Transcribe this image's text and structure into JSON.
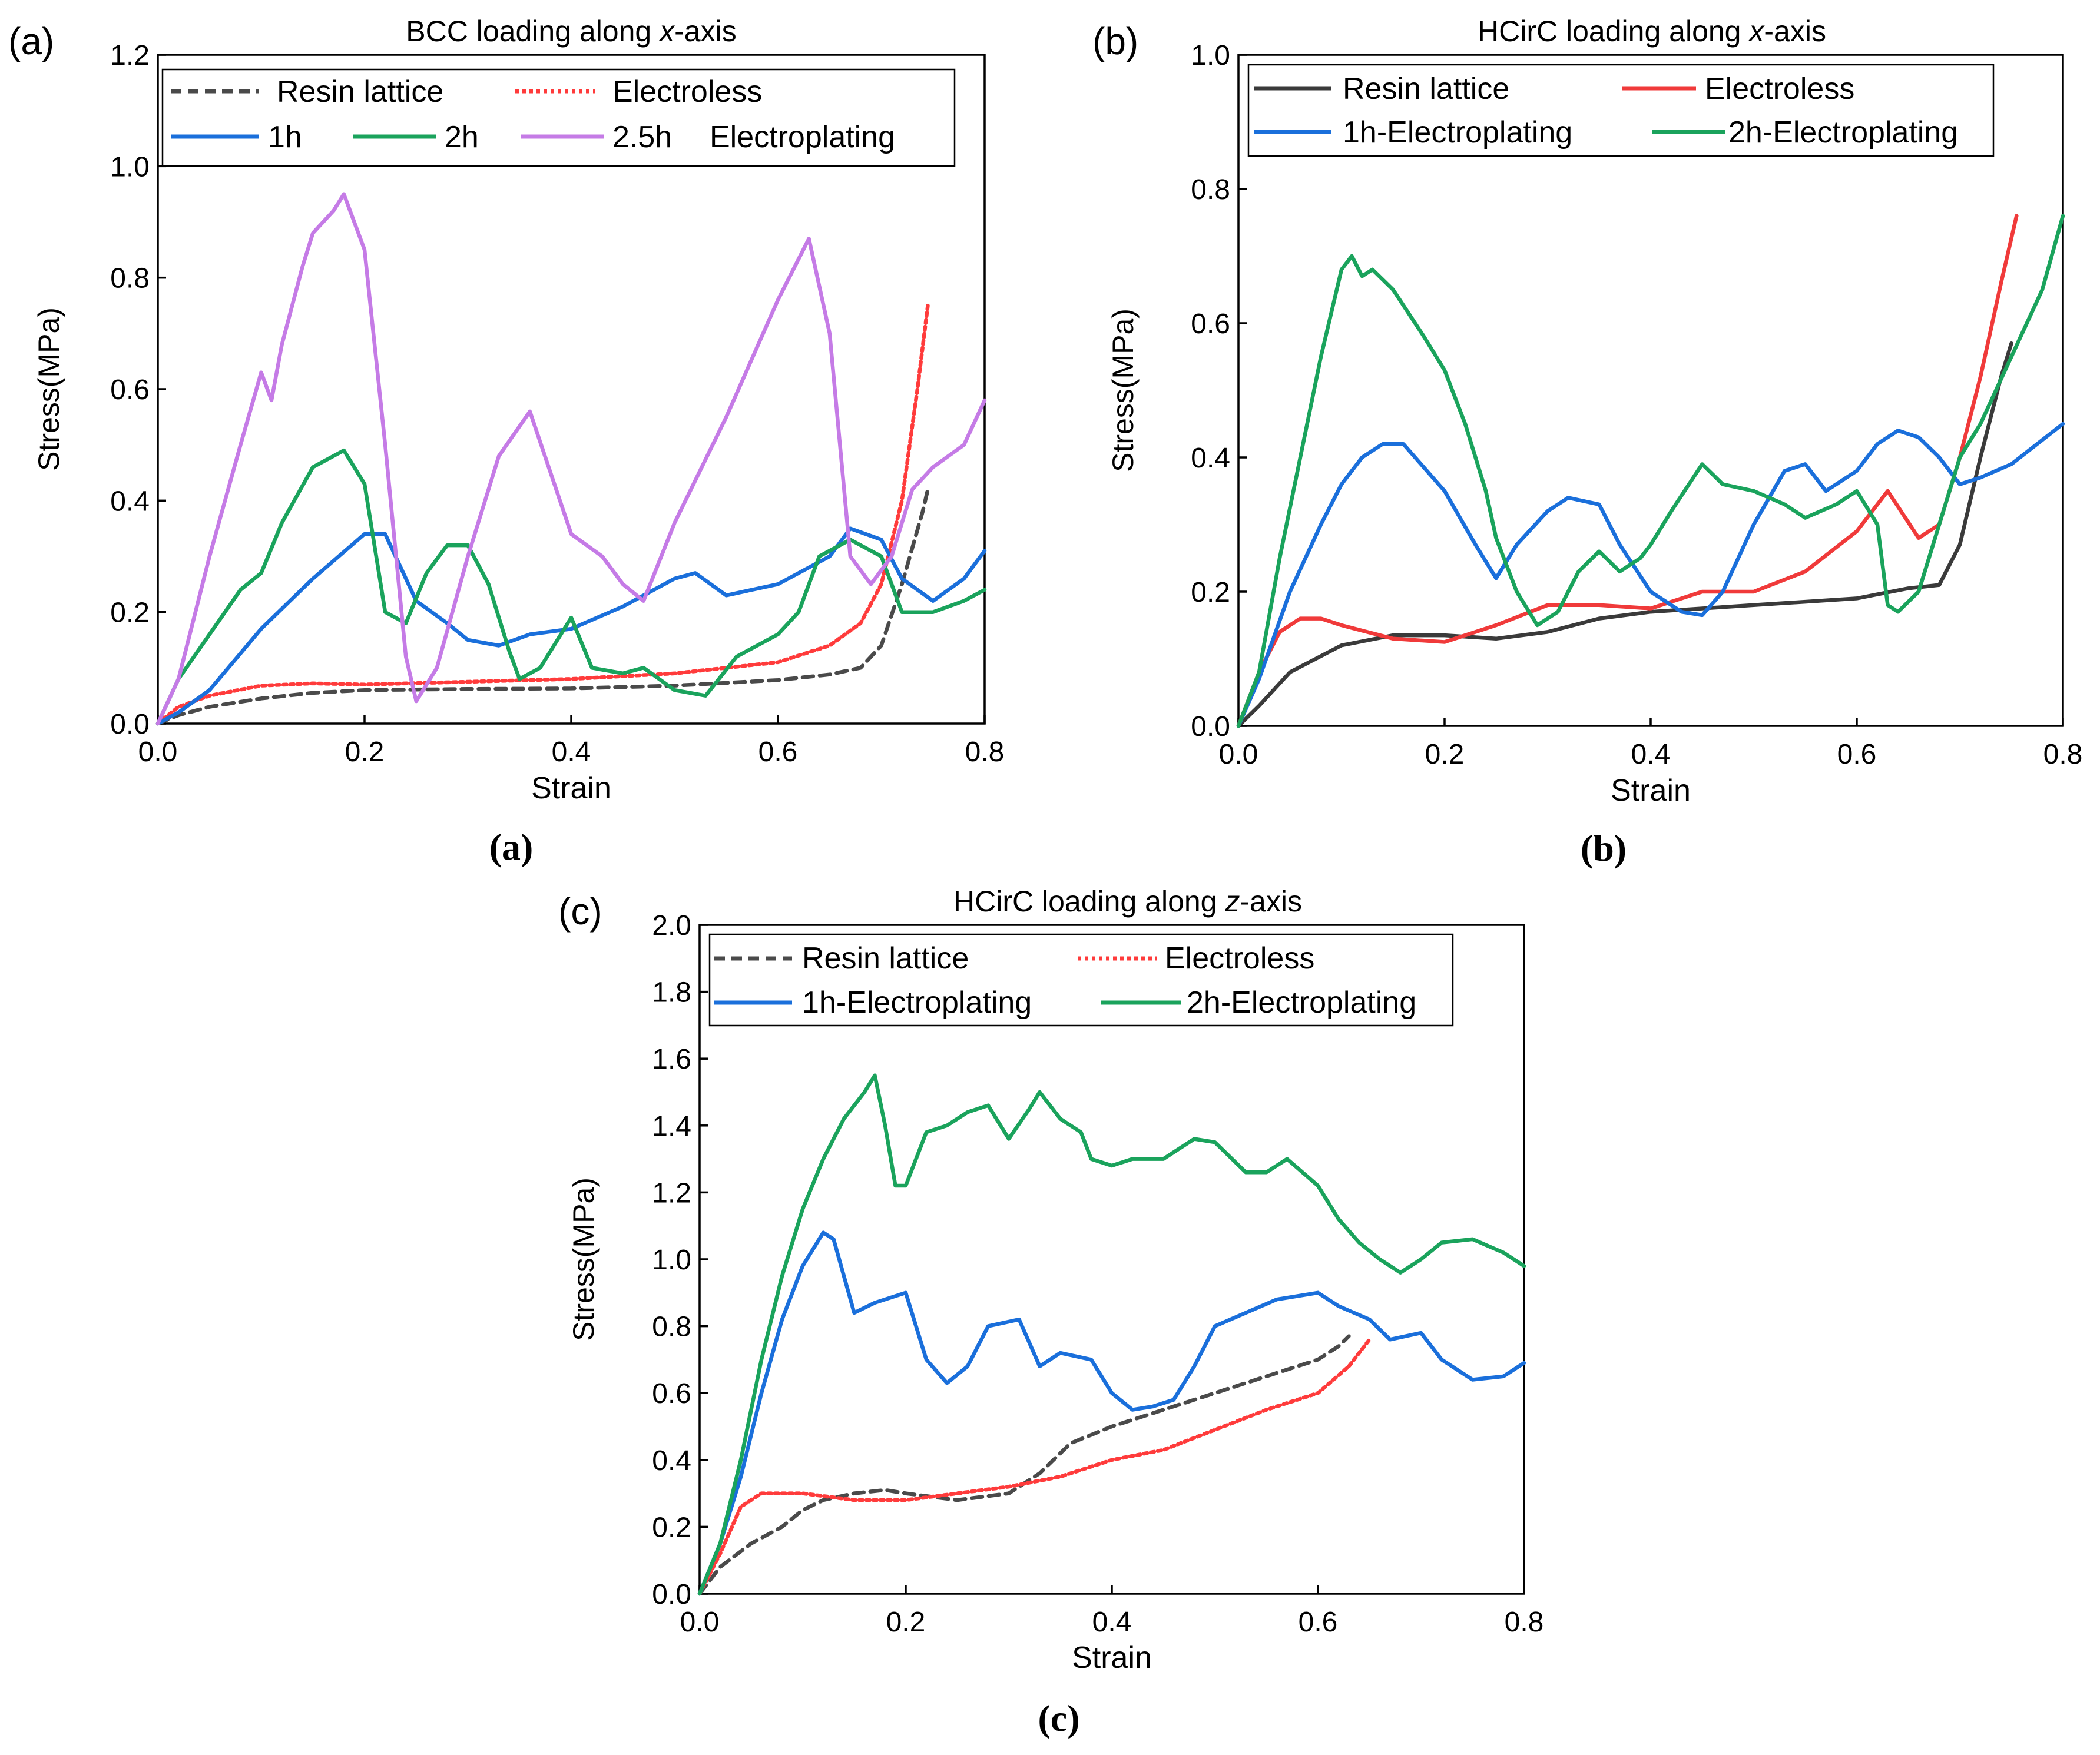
{
  "chart_data": [
    {
      "type": "line",
      "panel_label": "(a)",
      "caption": "(a)",
      "title_prefix": "BCC loading along ",
      "title_italic": "x",
      "title_suffix": "-axis",
      "xlabel": "Strain",
      "ylabel": "Stress(MPa)",
      "xlim": [
        0,
        0.8
      ],
      "ylim": [
        0,
        1.2
      ],
      "xticks": [
        0.0,
        0.2,
        0.4,
        0.6,
        0.8
      ],
      "xtick_labels": [
        "0.0",
        "0.2",
        "0.4",
        "0.6",
        "0.8"
      ],
      "yticks": [
        0.0,
        0.2,
        0.4,
        0.6,
        0.8,
        1.0,
        1.2
      ],
      "ytick_labels": [
        "0.0",
        "0.2",
        "0.4",
        "0.6",
        "0.8",
        "1.0",
        "1.2"
      ],
      "grid": false,
      "legend_position": "top-left",
      "legend_extra_text": "Electroplating",
      "series": [
        {
          "name": "Resin lattice",
          "color": "#4a4a4a",
          "style": "dashed",
          "x": [
            0,
            0.02,
            0.05,
            0.1,
            0.15,
            0.2,
            0.3,
            0.4,
            0.5,
            0.6,
            0.65,
            0.68,
            0.7,
            0.72,
            0.74,
            0.745
          ],
          "y": [
            0,
            0.015,
            0.03,
            0.045,
            0.055,
            0.06,
            0.062,
            0.063,
            0.068,
            0.078,
            0.088,
            0.1,
            0.14,
            0.25,
            0.38,
            0.42
          ]
        },
        {
          "name": "Electroless",
          "color": "#ff3b3b",
          "style": "dotted",
          "x": [
            0,
            0.02,
            0.05,
            0.1,
            0.15,
            0.2,
            0.3,
            0.4,
            0.5,
            0.55,
            0.6,
            0.65,
            0.68,
            0.7,
            0.72,
            0.735,
            0.745
          ],
          "y": [
            0,
            0.03,
            0.05,
            0.068,
            0.072,
            0.07,
            0.075,
            0.08,
            0.09,
            0.1,
            0.11,
            0.14,
            0.18,
            0.25,
            0.4,
            0.6,
            0.75
          ]
        },
        {
          "name": "1h",
          "color": "#1a6fdb",
          "style": "solid",
          "x": [
            0,
            0.02,
            0.05,
            0.1,
            0.15,
            0.2,
            0.22,
            0.25,
            0.28,
            0.3,
            0.33,
            0.36,
            0.4,
            0.45,
            0.5,
            0.52,
            0.55,
            0.6,
            0.65,
            0.67,
            0.7,
            0.72,
            0.75,
            0.78,
            0.8
          ],
          "y": [
            0,
            0.02,
            0.06,
            0.17,
            0.26,
            0.34,
            0.34,
            0.22,
            0.18,
            0.15,
            0.14,
            0.16,
            0.17,
            0.21,
            0.26,
            0.27,
            0.23,
            0.25,
            0.3,
            0.35,
            0.33,
            0.26,
            0.22,
            0.26,
            0.31
          ]
        },
        {
          "name": "2h",
          "color": "#1aa35c",
          "style": "solid",
          "x": [
            0,
            0.02,
            0.05,
            0.08,
            0.1,
            0.12,
            0.15,
            0.18,
            0.2,
            0.22,
            0.24,
            0.26,
            0.28,
            0.3,
            0.32,
            0.34,
            0.35,
            0.37,
            0.4,
            0.42,
            0.45,
            0.47,
            0.5,
            0.53,
            0.56,
            0.6,
            0.62,
            0.64,
            0.67,
            0.7,
            0.72,
            0.75,
            0.78,
            0.8
          ],
          "y": [
            0,
            0.08,
            0.16,
            0.24,
            0.27,
            0.36,
            0.46,
            0.49,
            0.43,
            0.2,
            0.18,
            0.27,
            0.32,
            0.32,
            0.25,
            0.13,
            0.08,
            0.1,
            0.19,
            0.1,
            0.09,
            0.1,
            0.06,
            0.05,
            0.12,
            0.16,
            0.2,
            0.3,
            0.33,
            0.3,
            0.2,
            0.2,
            0.22,
            0.24
          ]
        },
        {
          "name": "2.5h",
          "color": "#c57be6",
          "style": "solid",
          "x": [
            0,
            0.02,
            0.05,
            0.08,
            0.1,
            0.11,
            0.12,
            0.14,
            0.15,
            0.17,
            0.18,
            0.2,
            0.22,
            0.24,
            0.25,
            0.27,
            0.3,
            0.33,
            0.36,
            0.38,
            0.4,
            0.43,
            0.45,
            0.47,
            0.5,
            0.55,
            0.6,
            0.63,
            0.65,
            0.67,
            0.69,
            0.71,
            0.73,
            0.75,
            0.78,
            0.8
          ],
          "y": [
            0,
            0.08,
            0.3,
            0.5,
            0.63,
            0.58,
            0.68,
            0.82,
            0.88,
            0.92,
            0.95,
            0.85,
            0.5,
            0.12,
            0.04,
            0.1,
            0.3,
            0.48,
            0.56,
            0.45,
            0.34,
            0.3,
            0.25,
            0.22,
            0.36,
            0.55,
            0.76,
            0.87,
            0.7,
            0.3,
            0.25,
            0.3,
            0.42,
            0.46,
            0.5,
            0.58
          ]
        }
      ]
    },
    {
      "type": "line",
      "panel_label": "(b)",
      "caption": "(b)",
      "title_prefix": "HCirC loading along ",
      "title_italic": "x",
      "title_suffix": "-axis",
      "xlabel": "Strain",
      "ylabel": "Stress(MPa)",
      "xlim": [
        0,
        0.8
      ],
      "ylim": [
        0,
        1.0
      ],
      "xticks": [
        0.0,
        0.2,
        0.4,
        0.6,
        0.8
      ],
      "xtick_labels": [
        "0.0",
        "0.2",
        "0.4",
        "0.6",
        "0.8"
      ],
      "yticks": [
        0.0,
        0.2,
        0.4,
        0.6,
        0.8,
        1.0
      ],
      "ytick_labels": [
        "0.0",
        "0.2",
        "0.4",
        "0.6",
        "0.8",
        "1.0"
      ],
      "grid": false,
      "legend_position": "top-left",
      "series": [
        {
          "name": "Resin lattice",
          "color": "#3a3a3a",
          "style": "solid",
          "x": [
            0,
            0.02,
            0.05,
            0.1,
            0.15,
            0.2,
            0.25,
            0.3,
            0.35,
            0.4,
            0.45,
            0.5,
            0.55,
            0.6,
            0.65,
            0.68,
            0.7,
            0.72,
            0.74,
            0.75
          ],
          "y": [
            0,
            0.03,
            0.08,
            0.12,
            0.135,
            0.135,
            0.13,
            0.14,
            0.16,
            0.17,
            0.175,
            0.18,
            0.185,
            0.19,
            0.205,
            0.21,
            0.27,
            0.4,
            0.52,
            0.57
          ]
        },
        {
          "name": "Electroless",
          "color": "#f03a3a",
          "style": "solid",
          "x": [
            0,
            0.02,
            0.04,
            0.06,
            0.08,
            0.1,
            0.15,
            0.2,
            0.25,
            0.3,
            0.35,
            0.4,
            0.45,
            0.5,
            0.55,
            0.6,
            0.63,
            0.66,
            0.68,
            0.7,
            0.72,
            0.74,
            0.755
          ],
          "y": [
            0,
            0.08,
            0.14,
            0.16,
            0.16,
            0.15,
            0.13,
            0.125,
            0.15,
            0.18,
            0.18,
            0.175,
            0.2,
            0.2,
            0.23,
            0.29,
            0.35,
            0.28,
            0.3,
            0.4,
            0.52,
            0.66,
            0.76
          ]
        },
        {
          "name": "1h-Electroplating",
          "color": "#1a6fdb",
          "style": "solid",
          "x": [
            0,
            0.02,
            0.05,
            0.08,
            0.1,
            0.12,
            0.14,
            0.16,
            0.2,
            0.23,
            0.25,
            0.27,
            0.3,
            0.32,
            0.35,
            0.37,
            0.4,
            0.43,
            0.45,
            0.47,
            0.5,
            0.53,
            0.55,
            0.57,
            0.6,
            0.62,
            0.64,
            0.66,
            0.68,
            0.7,
            0.72,
            0.75,
            0.8
          ],
          "y": [
            0,
            0.07,
            0.2,
            0.3,
            0.36,
            0.4,
            0.42,
            0.42,
            0.35,
            0.27,
            0.22,
            0.27,
            0.32,
            0.34,
            0.33,
            0.27,
            0.2,
            0.17,
            0.165,
            0.2,
            0.3,
            0.38,
            0.39,
            0.35,
            0.38,
            0.42,
            0.44,
            0.43,
            0.4,
            0.36,
            0.37,
            0.39,
            0.45
          ]
        },
        {
          "name": "2h-Electroplating",
          "color": "#1aa35c",
          "style": "solid",
          "x": [
            0,
            0.02,
            0.04,
            0.06,
            0.08,
            0.1,
            0.11,
            0.12,
            0.13,
            0.15,
            0.18,
            0.2,
            0.22,
            0.24,
            0.25,
            0.27,
            0.29,
            0.31,
            0.33,
            0.35,
            0.37,
            0.39,
            0.4,
            0.42,
            0.45,
            0.47,
            0.5,
            0.53,
            0.55,
            0.58,
            0.6,
            0.62,
            0.63,
            0.64,
            0.66,
            0.68,
            0.7,
            0.72,
            0.75,
            0.78,
            0.8
          ],
          "y": [
            0,
            0.08,
            0.25,
            0.4,
            0.55,
            0.68,
            0.7,
            0.67,
            0.68,
            0.65,
            0.58,
            0.53,
            0.45,
            0.35,
            0.28,
            0.2,
            0.15,
            0.17,
            0.23,
            0.26,
            0.23,
            0.25,
            0.27,
            0.32,
            0.39,
            0.36,
            0.35,
            0.33,
            0.31,
            0.33,
            0.35,
            0.3,
            0.18,
            0.17,
            0.2,
            0.3,
            0.4,
            0.45,
            0.55,
            0.65,
            0.76
          ]
        }
      ]
    },
    {
      "type": "line",
      "panel_label": "(c)",
      "caption": "(c)",
      "title_prefix": "HCirC loading along ",
      "title_italic": "z",
      "title_suffix": "-axis",
      "xlabel": "Strain",
      "ylabel": "Stress(MPa)",
      "xlim": [
        0,
        0.8
      ],
      "ylim": [
        0,
        2.0
      ],
      "xticks": [
        0.0,
        0.2,
        0.4,
        0.6,
        0.8
      ],
      "xtick_labels": [
        "0.0",
        "0.2",
        "0.4",
        "0.6",
        "0.8"
      ],
      "yticks": [
        0.0,
        0.2,
        0.4,
        0.6,
        0.8,
        1.0,
        1.2,
        1.4,
        1.6,
        1.8,
        2.0
      ],
      "ytick_labels": [
        "0.0",
        "0.2",
        "0.4",
        "0.6",
        "0.8",
        "1.0",
        "1.2",
        "1.4",
        "1.6",
        "1.8",
        "2.0"
      ],
      "grid": false,
      "legend_position": "top-left",
      "series": [
        {
          "name": "Resin lattice",
          "color": "#4a4a4a",
          "style": "dashed",
          "x": [
            0,
            0.02,
            0.05,
            0.08,
            0.1,
            0.12,
            0.15,
            0.18,
            0.2,
            0.25,
            0.3,
            0.33,
            0.36,
            0.4,
            0.45,
            0.5,
            0.55,
            0.6,
            0.62,
            0.63
          ],
          "y": [
            0,
            0.08,
            0.15,
            0.2,
            0.25,
            0.28,
            0.3,
            0.31,
            0.3,
            0.28,
            0.3,
            0.36,
            0.45,
            0.5,
            0.55,
            0.6,
            0.65,
            0.7,
            0.74,
            0.77
          ]
        },
        {
          "name": "Electroless",
          "color": "#ff3b3b",
          "style": "dotted",
          "x": [
            0,
            0.02,
            0.04,
            0.06,
            0.08,
            0.1,
            0.15,
            0.2,
            0.25,
            0.3,
            0.35,
            0.4,
            0.45,
            0.5,
            0.55,
            0.6,
            0.63,
            0.65
          ],
          "y": [
            0,
            0.12,
            0.26,
            0.3,
            0.3,
            0.3,
            0.28,
            0.28,
            0.3,
            0.32,
            0.35,
            0.4,
            0.43,
            0.49,
            0.55,
            0.6,
            0.68,
            0.76
          ]
        },
        {
          "name": "1h-Electroplating",
          "color": "#1a6fdb",
          "style": "solid",
          "x": [
            0,
            0.02,
            0.04,
            0.06,
            0.08,
            0.1,
            0.12,
            0.13,
            0.14,
            0.15,
            0.17,
            0.2,
            0.22,
            0.24,
            0.26,
            0.28,
            0.31,
            0.33,
            0.35,
            0.38,
            0.4,
            0.42,
            0.44,
            0.46,
            0.48,
            0.5,
            0.53,
            0.56,
            0.6,
            0.62,
            0.65,
            0.67,
            0.7,
            0.72,
            0.75,
            0.78,
            0.8
          ],
          "y": [
            0,
            0.15,
            0.35,
            0.6,
            0.82,
            0.98,
            1.08,
            1.06,
            0.95,
            0.84,
            0.87,
            0.9,
            0.7,
            0.63,
            0.68,
            0.8,
            0.82,
            0.68,
            0.72,
            0.7,
            0.6,
            0.55,
            0.56,
            0.58,
            0.68,
            0.8,
            0.84,
            0.88,
            0.9,
            0.86,
            0.82,
            0.76,
            0.78,
            0.7,
            0.64,
            0.65,
            0.69
          ]
        },
        {
          "name": "2h-Electroplating",
          "color": "#1aa35c",
          "style": "solid",
          "x": [
            0,
            0.02,
            0.04,
            0.06,
            0.08,
            0.1,
            0.12,
            0.14,
            0.16,
            0.17,
            0.18,
            0.19,
            0.2,
            0.22,
            0.24,
            0.26,
            0.28,
            0.3,
            0.32,
            0.33,
            0.35,
            0.37,
            0.38,
            0.4,
            0.42,
            0.45,
            0.48,
            0.5,
            0.53,
            0.55,
            0.57,
            0.6,
            0.62,
            0.64,
            0.66,
            0.68,
            0.7,
            0.72,
            0.75,
            0.78,
            0.8
          ],
          "y": [
            0,
            0.15,
            0.4,
            0.7,
            0.95,
            1.15,
            1.3,
            1.42,
            1.5,
            1.55,
            1.4,
            1.22,
            1.22,
            1.38,
            1.4,
            1.44,
            1.46,
            1.36,
            1.45,
            1.5,
            1.42,
            1.38,
            1.3,
            1.28,
            1.3,
            1.3,
            1.36,
            1.35,
            1.26,
            1.26,
            1.3,
            1.22,
            1.12,
            1.05,
            1.0,
            0.96,
            1.0,
            1.05,
            1.06,
            1.02,
            0.98
          ]
        }
      ]
    }
  ]
}
